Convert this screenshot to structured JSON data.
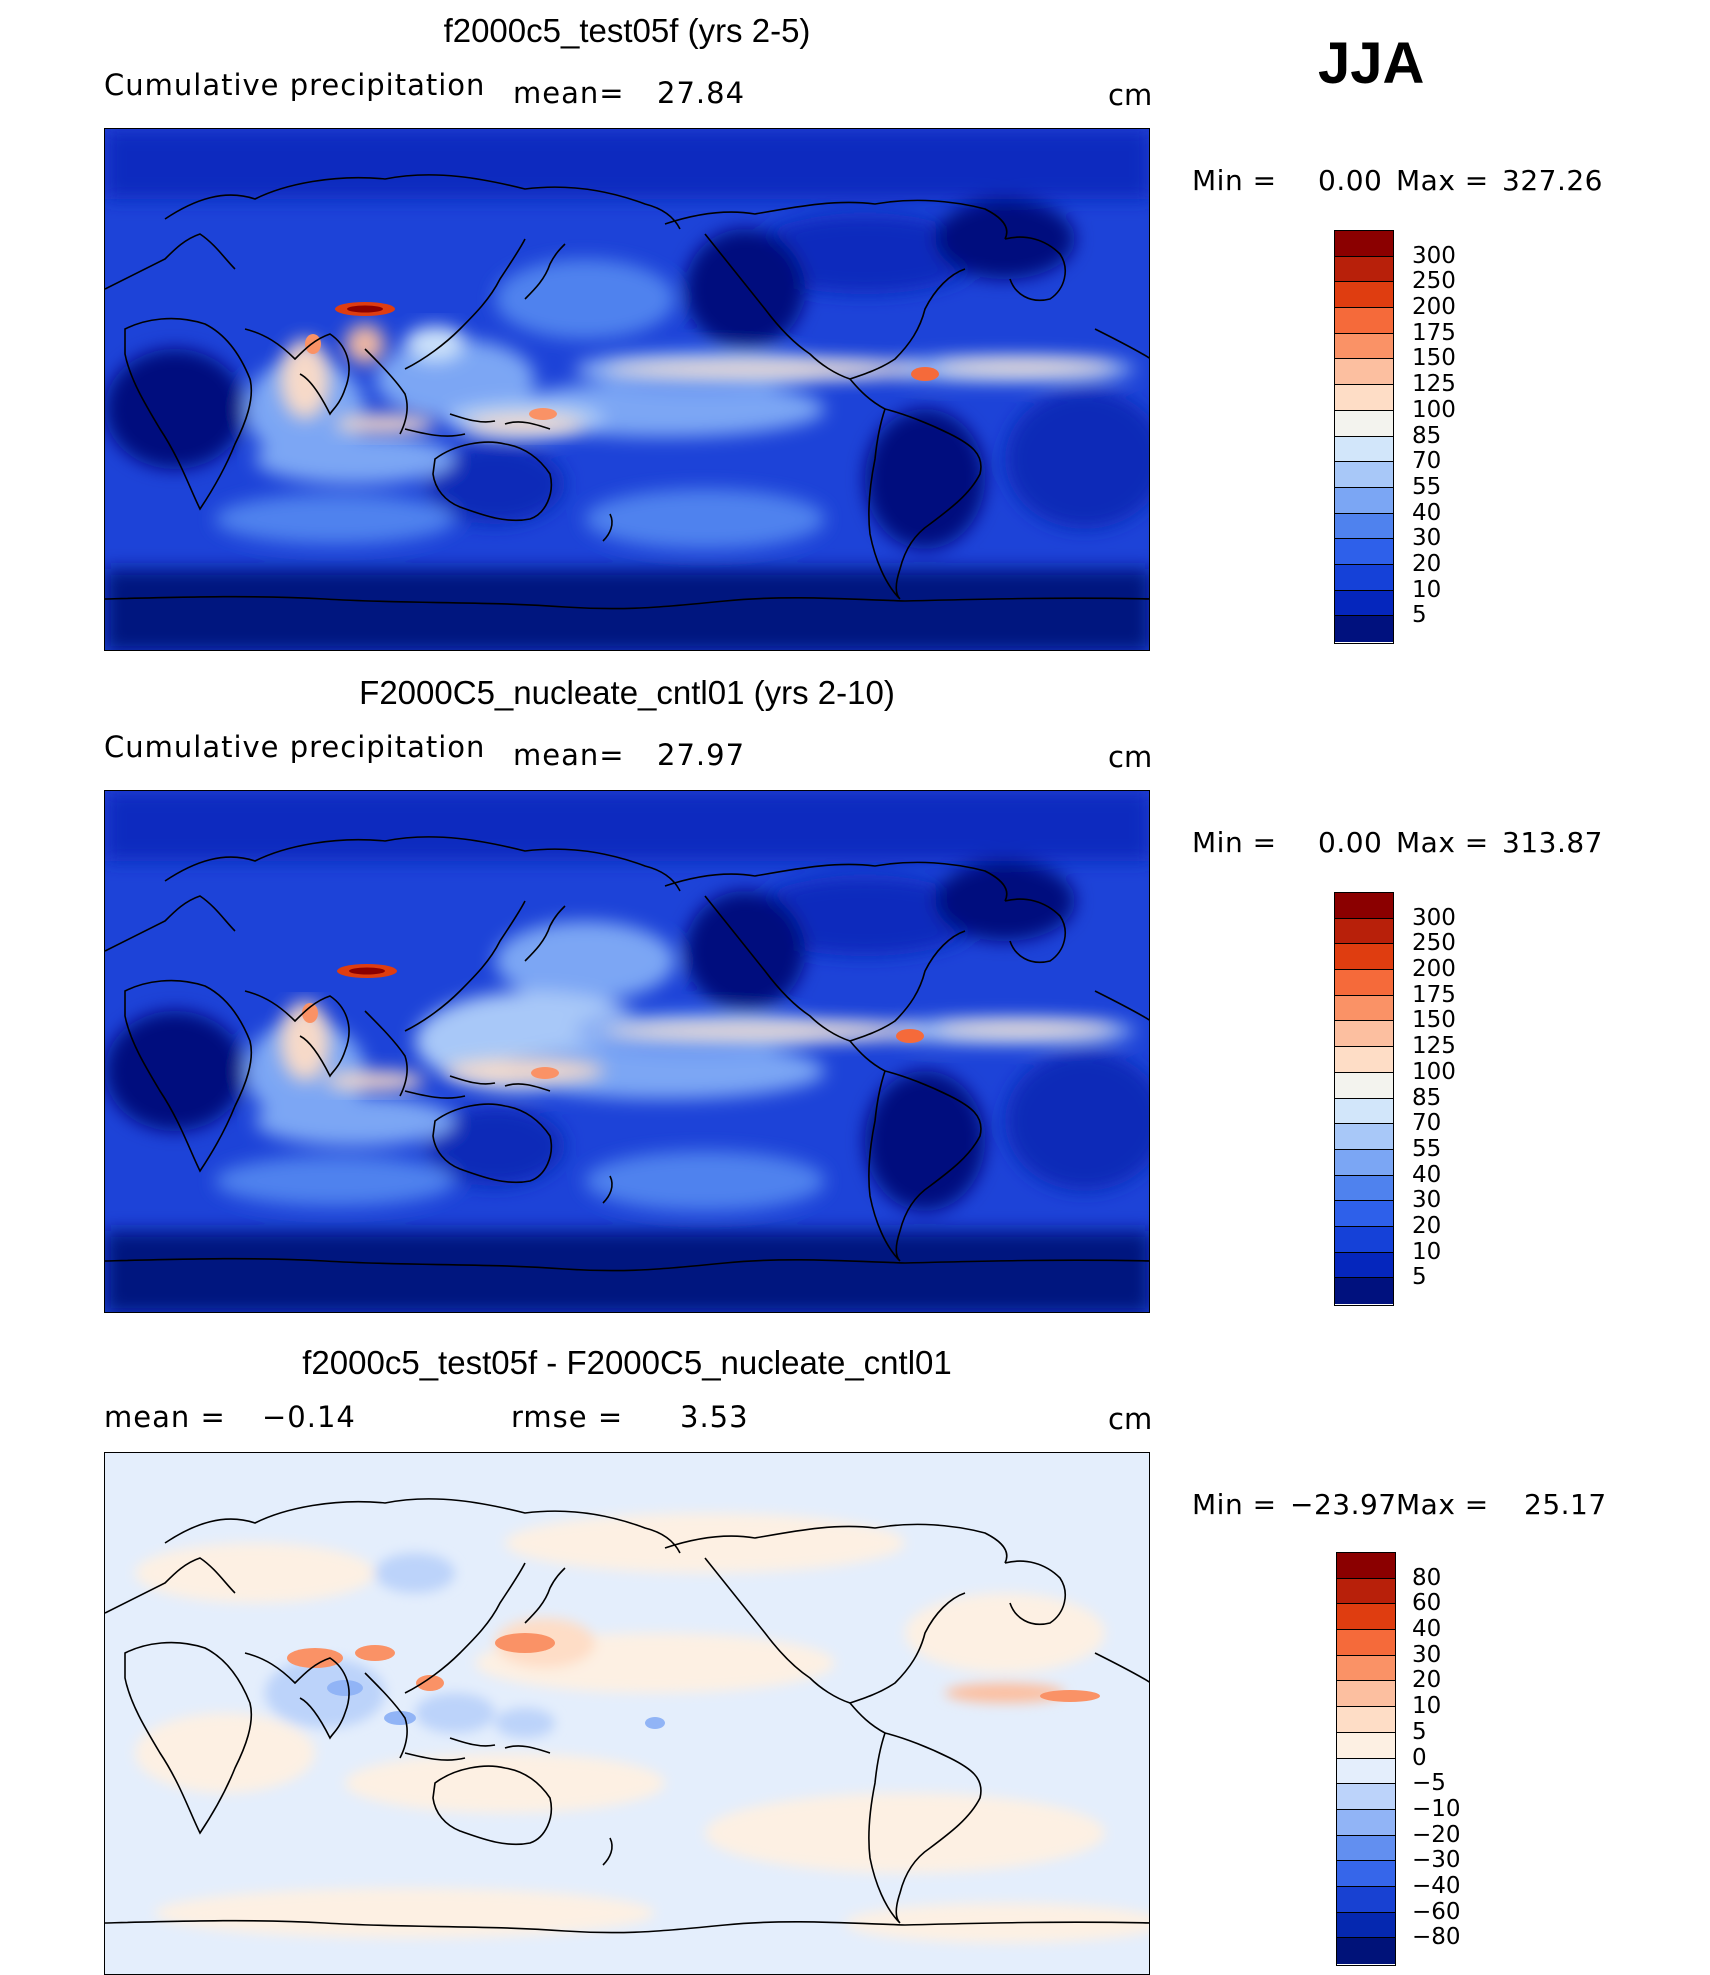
{
  "season": "JJA",
  "panels": [
    {
      "title": "f2000c5_test05f (yrs 2-5)",
      "left_label": "Cumulative precipitation",
      "stat_label": "mean=",
      "stat_value": "27.84",
      "unit": "cm",
      "min_label": "Min =",
      "min_value": "0.00",
      "max_label": "Max =",
      "max_value": "327.26",
      "colorbar": {
        "labels": [
          "300",
          "250",
          "200",
          "175",
          "150",
          "125",
          "100",
          "85",
          "70",
          "55",
          "40",
          "30",
          "20",
          "10",
          "5"
        ],
        "colors": [
          "#8b0000",
          "#b8200a",
          "#df3d10",
          "#f56a3a",
          "#fa9266",
          "#fcbfa0",
          "#feddc6",
          "#f3f3ee",
          "#d2e6fa",
          "#a8c8f8",
          "#7ba6f4",
          "#4f82ee",
          "#2e60ea",
          "#1541d8",
          "#0526bd",
          "#00117e"
        ]
      }
    },
    {
      "title": "F2000C5_nucleate_cntl01 (yrs 2-10)",
      "left_label": "Cumulative precipitation",
      "stat_label": "mean=",
      "stat_value": "27.97",
      "unit": "cm",
      "min_label": "Min =",
      "min_value": "0.00",
      "max_label": "Max =",
      "max_value": "313.87",
      "colorbar": {
        "labels": [
          "300",
          "250",
          "200",
          "175",
          "150",
          "125",
          "100",
          "85",
          "70",
          "55",
          "40",
          "30",
          "20",
          "10",
          "5"
        ],
        "colors": [
          "#8b0000",
          "#b8200a",
          "#df3d10",
          "#f56a3a",
          "#fa9266",
          "#fcbfa0",
          "#feddc6",
          "#f3f3ee",
          "#d2e6fa",
          "#a8c8f8",
          "#7ba6f4",
          "#4f82ee",
          "#2e60ea",
          "#1541d8",
          "#0526bd",
          "#00117e"
        ]
      }
    },
    {
      "title": "f2000c5_test05f - F2000C5_nucleate_cntl01",
      "mean_label": "mean =",
      "mean_value": "−0.14",
      "rmse_label": "rmse =",
      "rmse_value": "3.53",
      "unit": "cm",
      "min_label": "Min =",
      "min_value": "−23.97",
      "max_label": "Max =",
      "max_value": "25.17",
      "colorbar": {
        "labels": [
          "80",
          "60",
          "40",
          "30",
          "20",
          "10",
          "5",
          "0",
          "−5",
          "−10",
          "−20",
          "−30",
          "−40",
          "−60",
          "−80"
        ],
        "colors": [
          "#8b0000",
          "#b8200a",
          "#df3d10",
          "#f56a3a",
          "#fa9266",
          "#fcbfa0",
          "#feddc6",
          "#fdf0e3",
          "#e4eefc",
          "#bcd3fa",
          "#91b4f6",
          "#628ff0",
          "#3666ea",
          "#1841d2",
          "#0528b0",
          "#001279"
        ]
      }
    }
  ]
}
